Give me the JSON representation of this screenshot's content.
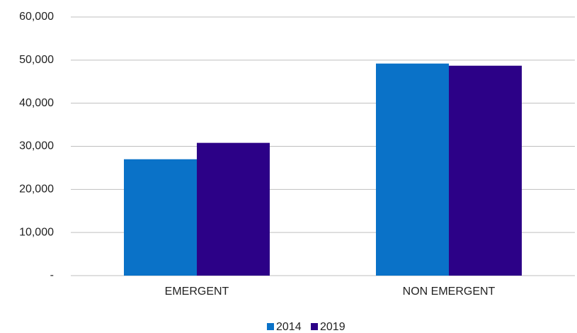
{
  "chart_data": {
    "type": "bar",
    "categories": [
      "EMERGENT",
      "NON EMERGENT"
    ],
    "series": [
      {
        "name": "2014",
        "color": "#0a72c8",
        "values": [
          27000,
          49200
        ]
      },
      {
        "name": "2019",
        "color": "#2c0187",
        "values": [
          30800,
          48700
        ]
      }
    ],
    "ylim": [
      0,
      60000
    ],
    "yticks": [
      {
        "value": 0,
        "label": "-"
      },
      {
        "value": 10000,
        "label": "10,000"
      },
      {
        "value": 20000,
        "label": "20,000"
      },
      {
        "value": 30000,
        "label": "30,000"
      },
      {
        "value": 40000,
        "label": "40,000"
      },
      {
        "value": 50000,
        "label": "50,000"
      },
      {
        "value": 60000,
        "label": "60,000"
      }
    ],
    "grid": true,
    "legend": "bottom"
  }
}
